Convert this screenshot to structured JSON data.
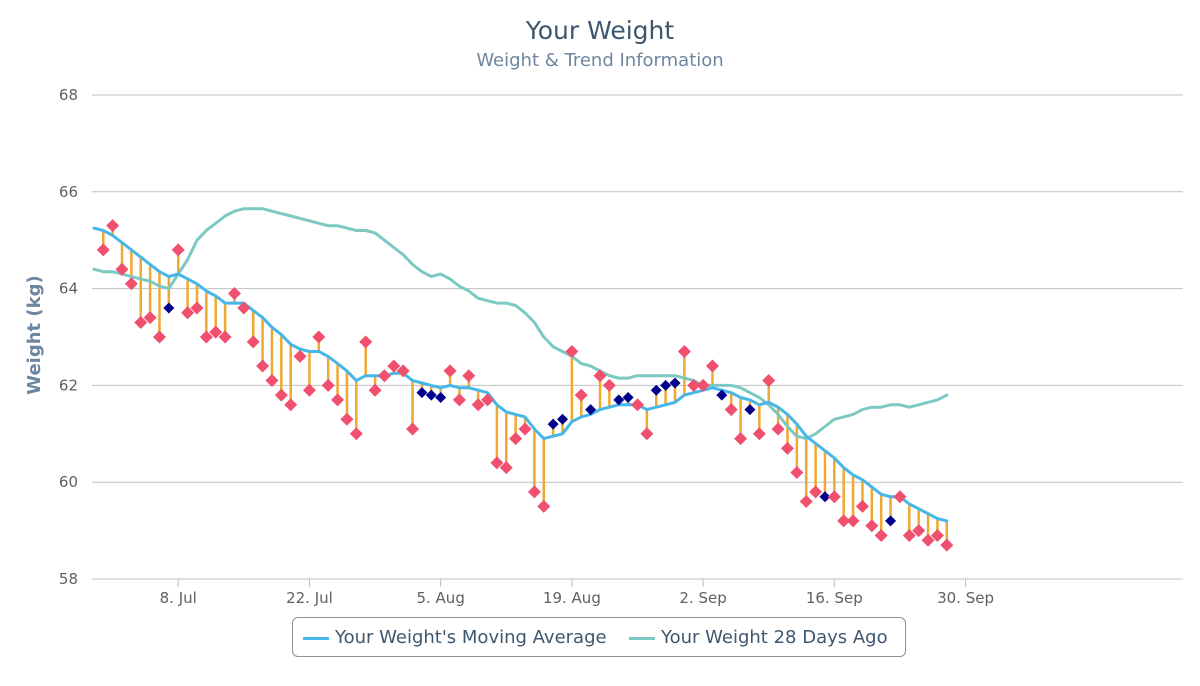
{
  "chart_data": {
    "type": "line",
    "title": "Your Weight",
    "subtitle": "Weight & Trend Information",
    "ylabel": "Weight (kg)",
    "ylim": [
      58,
      68
    ],
    "yticks": [
      58,
      60,
      62,
      64,
      66,
      68
    ],
    "xlim": [
      -0.2,
      116.2
    ],
    "xticks": [
      {
        "label": "8. Jul",
        "day": 9
      },
      {
        "label": "22. Jul",
        "day": 23
      },
      {
        "label": "5. Aug",
        "day": 37
      },
      {
        "label": "19. Aug",
        "day": 51
      },
      {
        "label": "2. Sep",
        "day": 65
      },
      {
        "label": "16. Sep",
        "day": 79
      },
      {
        "label": "30. Sep",
        "day": 93
      }
    ],
    "weights": [
      [
        1,
        64.8,
        "up"
      ],
      [
        2,
        65.3,
        "up"
      ],
      [
        3,
        64.4,
        "up"
      ],
      [
        4,
        64.1,
        "up"
      ],
      [
        5,
        63.3,
        "up"
      ],
      [
        6,
        63.4,
        "up"
      ],
      [
        7,
        63.0,
        "up"
      ],
      [
        8,
        63.6,
        "down"
      ],
      [
        9,
        64.8,
        "up"
      ],
      [
        10,
        63.5,
        "up"
      ],
      [
        11,
        63.6,
        "up"
      ],
      [
        12,
        63.0,
        "up"
      ],
      [
        13,
        63.1,
        "up"
      ],
      [
        14,
        63.0,
        "up"
      ],
      [
        15,
        63.9,
        "up"
      ],
      [
        16,
        63.6,
        "up"
      ],
      [
        17,
        62.9,
        "up"
      ],
      [
        18,
        62.4,
        "up"
      ],
      [
        19,
        62.1,
        "up"
      ],
      [
        20,
        61.8,
        "up"
      ],
      [
        21,
        61.6,
        "up"
      ],
      [
        22,
        62.6,
        "up"
      ],
      [
        23,
        61.9,
        "up"
      ],
      [
        24,
        63.0,
        "up"
      ],
      [
        25,
        62.0,
        "up"
      ],
      [
        26,
        61.7,
        "up"
      ],
      [
        27,
        61.3,
        "up"
      ],
      [
        28,
        61.0,
        "up"
      ],
      [
        29,
        62.9,
        "up"
      ],
      [
        30,
        61.9,
        "up"
      ],
      [
        31,
        62.2,
        "up"
      ],
      [
        32,
        62.4,
        "up"
      ],
      [
        33,
        62.3,
        "up"
      ],
      [
        34,
        61.1,
        "up"
      ],
      [
        35,
        61.85,
        "down"
      ],
      [
        36,
        61.8,
        "down"
      ],
      [
        37,
        61.75,
        "down"
      ],
      [
        38,
        62.3,
        "up"
      ],
      [
        39,
        61.7,
        "up"
      ],
      [
        40,
        62.2,
        "up"
      ],
      [
        41,
        61.6,
        "up"
      ],
      [
        42,
        61.7,
        "up"
      ],
      [
        43,
        60.4,
        "up"
      ],
      [
        44,
        60.3,
        "up"
      ],
      [
        45,
        60.9,
        "up"
      ],
      [
        46,
        61.1,
        "up"
      ],
      [
        47,
        59.8,
        "up"
      ],
      [
        48,
        59.5,
        "up"
      ],
      [
        49,
        61.2,
        "down"
      ],
      [
        50,
        61.3,
        "down"
      ],
      [
        51,
        62.7,
        "up"
      ],
      [
        52,
        61.8,
        "up"
      ],
      [
        53,
        61.5,
        "down"
      ],
      [
        54,
        62.2,
        "up"
      ],
      [
        55,
        62.0,
        "up"
      ],
      [
        56,
        61.7,
        "down"
      ],
      [
        57,
        61.75,
        "down"
      ],
      [
        58,
        61.6,
        "up"
      ],
      [
        59,
        61.0,
        "up"
      ],
      [
        60,
        61.9,
        "down"
      ],
      [
        61,
        62.0,
        "down"
      ],
      [
        62,
        62.05,
        "down"
      ],
      [
        63,
        62.7,
        "up"
      ],
      [
        64,
        62.0,
        "up"
      ],
      [
        65,
        62.0,
        "up"
      ],
      [
        66,
        62.4,
        "up"
      ],
      [
        67,
        61.8,
        "down"
      ],
      [
        68,
        61.5,
        "up"
      ],
      [
        69,
        60.9,
        "up"
      ],
      [
        70,
        61.5,
        "down"
      ],
      [
        71,
        61.0,
        "up"
      ],
      [
        72,
        62.1,
        "up"
      ],
      [
        73,
        61.1,
        "up"
      ],
      [
        74,
        60.7,
        "up"
      ],
      [
        75,
        60.2,
        "up"
      ],
      [
        76,
        59.6,
        "up"
      ],
      [
        77,
        59.8,
        "up"
      ],
      [
        78,
        59.7,
        "down"
      ],
      [
        79,
        59.7,
        "up"
      ],
      [
        80,
        59.2,
        "up"
      ],
      [
        81,
        59.2,
        "up"
      ],
      [
        82,
        59.5,
        "up"
      ],
      [
        83,
        59.1,
        "up"
      ],
      [
        84,
        58.9,
        "up"
      ],
      [
        85,
        59.2,
        "down"
      ],
      [
        86,
        59.7,
        "up"
      ],
      [
        87,
        58.9,
        "up"
      ],
      [
        88,
        59.0,
        "up"
      ],
      [
        89,
        58.8,
        "up"
      ],
      [
        90,
        58.9,
        "up"
      ],
      [
        91,
        58.7,
        "up"
      ]
    ],
    "series": [
      {
        "name": "Your Weight's Moving Average",
        "color": "#47b6e8",
        "points": [
          [
            0,
            65.25
          ],
          [
            1,
            65.2
          ],
          [
            2,
            65.1
          ],
          [
            3,
            64.95
          ],
          [
            4,
            64.8
          ],
          [
            5,
            64.65
          ],
          [
            6,
            64.5
          ],
          [
            7,
            64.35
          ],
          [
            8,
            64.25
          ],
          [
            9,
            64.3
          ],
          [
            10,
            64.2
          ],
          [
            11,
            64.1
          ],
          [
            12,
            63.95
          ],
          [
            13,
            63.85
          ],
          [
            14,
            63.7
          ],
          [
            15,
            63.7
          ],
          [
            16,
            63.7
          ],
          [
            17,
            63.55
          ],
          [
            18,
            63.4
          ],
          [
            19,
            63.2
          ],
          [
            20,
            63.05
          ],
          [
            21,
            62.85
          ],
          [
            22,
            62.75
          ],
          [
            23,
            62.7
          ],
          [
            24,
            62.7
          ],
          [
            25,
            62.6
          ],
          [
            26,
            62.45
          ],
          [
            27,
            62.3
          ],
          [
            28,
            62.1
          ],
          [
            29,
            62.2
          ],
          [
            30,
            62.2
          ],
          [
            31,
            62.2
          ],
          [
            32,
            62.25
          ],
          [
            33,
            62.25
          ],
          [
            34,
            62.1
          ],
          [
            35,
            62.05
          ],
          [
            36,
            62.0
          ],
          [
            37,
            61.95
          ],
          [
            38,
            62.0
          ],
          [
            39,
            61.95
          ],
          [
            40,
            61.95
          ],
          [
            41,
            61.9
          ],
          [
            42,
            61.85
          ],
          [
            43,
            61.6
          ],
          [
            44,
            61.45
          ],
          [
            45,
            61.4
          ],
          [
            46,
            61.35
          ],
          [
            47,
            61.1
          ],
          [
            48,
            60.9
          ],
          [
            49,
            60.95
          ],
          [
            50,
            61.0
          ],
          [
            51,
            61.25
          ],
          [
            52,
            61.35
          ],
          [
            53,
            61.4
          ],
          [
            54,
            61.5
          ],
          [
            55,
            61.55
          ],
          [
            56,
            61.6
          ],
          [
            57,
            61.6
          ],
          [
            58,
            61.6
          ],
          [
            59,
            61.5
          ],
          [
            60,
            61.55
          ],
          [
            61,
            61.6
          ],
          [
            62,
            61.65
          ],
          [
            63,
            61.8
          ],
          [
            64,
            61.85
          ],
          [
            65,
            61.9
          ],
          [
            66,
            61.95
          ],
          [
            67,
            61.9
          ],
          [
            68,
            61.85
          ],
          [
            69,
            61.75
          ],
          [
            70,
            61.7
          ],
          [
            71,
            61.6
          ],
          [
            72,
            61.65
          ],
          [
            73,
            61.55
          ],
          [
            74,
            61.4
          ],
          [
            75,
            61.2
          ],
          [
            76,
            60.95
          ],
          [
            77,
            60.8
          ],
          [
            78,
            60.65
          ],
          [
            79,
            60.5
          ],
          [
            80,
            60.3
          ],
          [
            81,
            60.15
          ],
          [
            82,
            60.05
          ],
          [
            83,
            59.9
          ],
          [
            84,
            59.75
          ],
          [
            85,
            59.7
          ],
          [
            86,
            59.7
          ],
          [
            87,
            59.55
          ],
          [
            88,
            59.45
          ],
          [
            89,
            59.35
          ],
          [
            90,
            59.25
          ],
          [
            91,
            59.2
          ]
        ]
      },
      {
        "name": "Your Weight 28 Days Ago",
        "color": "#7cc9c4",
        "points": [
          [
            0,
            64.4
          ],
          [
            1,
            64.35
          ],
          [
            2,
            64.35
          ],
          [
            3,
            64.3
          ],
          [
            4,
            64.25
          ],
          [
            5,
            64.2
          ],
          [
            6,
            64.15
          ],
          [
            7,
            64.05
          ],
          [
            8,
            64.0
          ],
          [
            9,
            64.3
          ],
          [
            10,
            64.6
          ],
          [
            11,
            65.0
          ],
          [
            12,
            65.2
          ],
          [
            13,
            65.35
          ],
          [
            14,
            65.5
          ],
          [
            15,
            65.6
          ],
          [
            16,
            65.65
          ],
          [
            17,
            65.65
          ],
          [
            18,
            65.65
          ],
          [
            19,
            65.6
          ],
          [
            20,
            65.55
          ],
          [
            21,
            65.5
          ],
          [
            22,
            65.45
          ],
          [
            23,
            65.4
          ],
          [
            24,
            65.35
          ],
          [
            25,
            65.3
          ],
          [
            26,
            65.3
          ],
          [
            27,
            65.25
          ],
          [
            28,
            65.2
          ],
          [
            29,
            65.2
          ],
          [
            30,
            65.15
          ],
          [
            31,
            65.0
          ],
          [
            32,
            64.85
          ],
          [
            33,
            64.7
          ],
          [
            34,
            64.5
          ],
          [
            35,
            64.35
          ],
          [
            36,
            64.25
          ],
          [
            37,
            64.3
          ],
          [
            38,
            64.2
          ],
          [
            39,
            64.05
          ],
          [
            40,
            63.95
          ],
          [
            41,
            63.8
          ],
          [
            42,
            63.75
          ],
          [
            43,
            63.7
          ],
          [
            44,
            63.7
          ],
          [
            45,
            63.65
          ],
          [
            46,
            63.5
          ],
          [
            47,
            63.3
          ],
          [
            48,
            63.0
          ],
          [
            49,
            62.8
          ],
          [
            50,
            62.7
          ],
          [
            51,
            62.6
          ],
          [
            52,
            62.45
          ],
          [
            53,
            62.4
          ],
          [
            54,
            62.3
          ],
          [
            55,
            62.2
          ],
          [
            56,
            62.15
          ],
          [
            57,
            62.15
          ],
          [
            58,
            62.2
          ],
          [
            59,
            62.2
          ],
          [
            60,
            62.2
          ],
          [
            61,
            62.2
          ],
          [
            62,
            62.2
          ],
          [
            63,
            62.15
          ],
          [
            64,
            62.1
          ],
          [
            65,
            62.0
          ],
          [
            66,
            62.0
          ],
          [
            67,
            62.0
          ],
          [
            68,
            62.0
          ],
          [
            69,
            61.95
          ],
          [
            70,
            61.85
          ],
          [
            71,
            61.75
          ],
          [
            72,
            61.6
          ],
          [
            73,
            61.4
          ],
          [
            74,
            61.15
          ],
          [
            75,
            60.95
          ],
          [
            76,
            60.9
          ],
          [
            77,
            61.0
          ],
          [
            78,
            61.15
          ],
          [
            79,
            61.3
          ],
          [
            80,
            61.35
          ],
          [
            81,
            61.4
          ],
          [
            82,
            61.5
          ],
          [
            83,
            61.55
          ],
          [
            84,
            61.55
          ],
          [
            85,
            61.6
          ],
          [
            86,
            61.6
          ],
          [
            87,
            61.55
          ],
          [
            88,
            61.6
          ],
          [
            89,
            61.65
          ],
          [
            90,
            61.7
          ],
          [
            91,
            61.8
          ]
        ]
      }
    ],
    "colors": {
      "up_marker": "#f0506e",
      "down_marker": "#00008b",
      "drop_line": "#f0a830",
      "gridline": "#c0c0c0"
    },
    "legend_position": "bottom-center"
  }
}
